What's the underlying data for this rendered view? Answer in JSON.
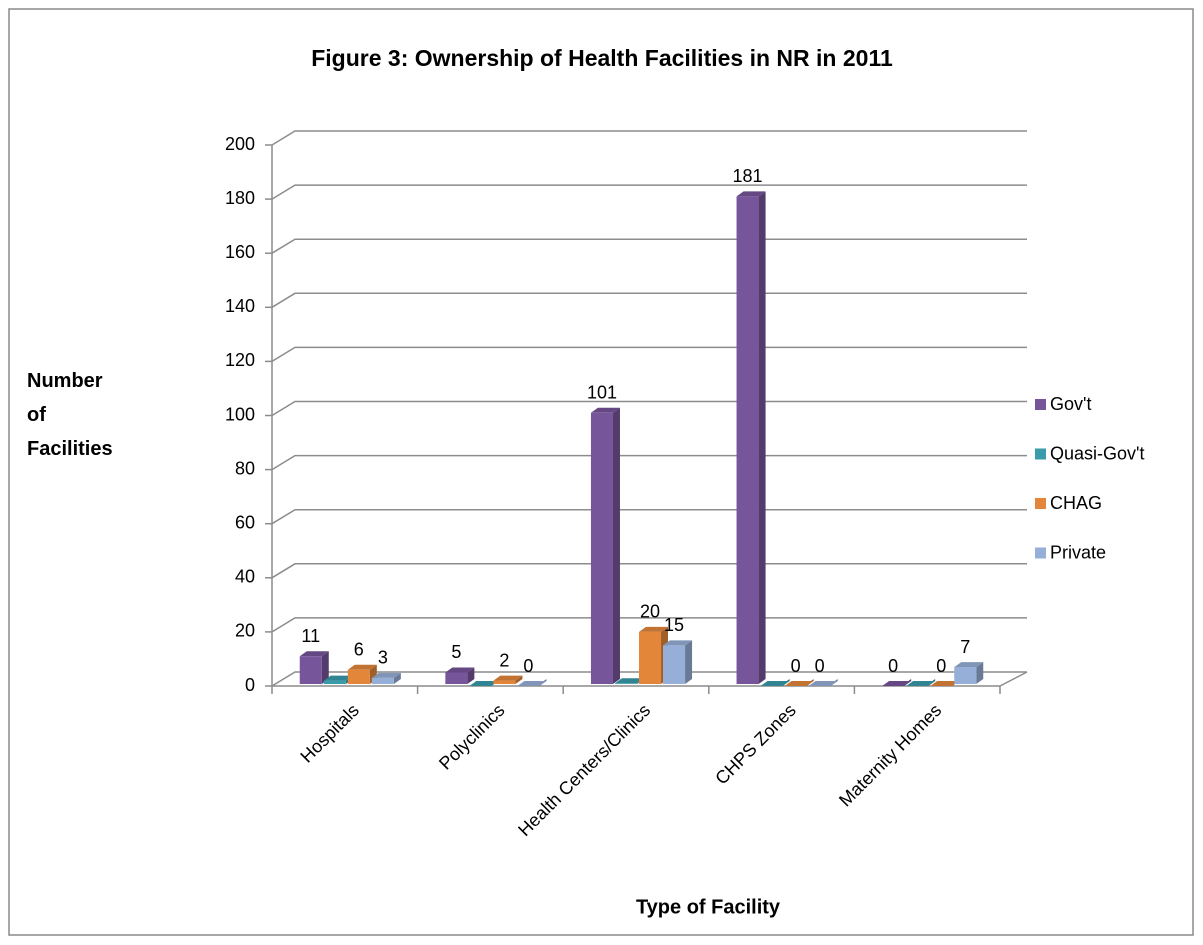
{
  "chart_data": {
    "type": "bar3d",
    "title": "Figure 3: Ownership of Health Facilities in NR in 2011",
    "x_label": "Type of Facility",
    "y_label": "Number of Facilities",
    "categories": [
      "Hospitals",
      "Polyclinics",
      "Health Centers/Clinics",
      "CHPS Zones",
      "Maternity Homes"
    ],
    "series": [
      {
        "name": "Gov't",
        "color": "#77559a",
        "data_labels": true,
        "values": [
          11,
          5,
          101,
          181,
          0
        ]
      },
      {
        "name": "Quasi-Gov't",
        "color": "#3a9bab",
        "data_labels": false,
        "values": [
          2,
          0,
          1,
          0,
          0
        ]
      },
      {
        "name": "CHAG",
        "color": "#e4863a",
        "data_labels": true,
        "values": [
          6,
          2,
          20,
          0,
          0
        ]
      },
      {
        "name": "Private",
        "color": "#96afd8",
        "data_labels": true,
        "values": [
          3,
          0,
          15,
          0,
          7
        ]
      }
    ],
    "ylim": [
      0,
      200
    ],
    "yticks": [
      0,
      20,
      40,
      60,
      80,
      100,
      120,
      140,
      160,
      180,
      200
    ],
    "grid": true,
    "legend": "right"
  }
}
